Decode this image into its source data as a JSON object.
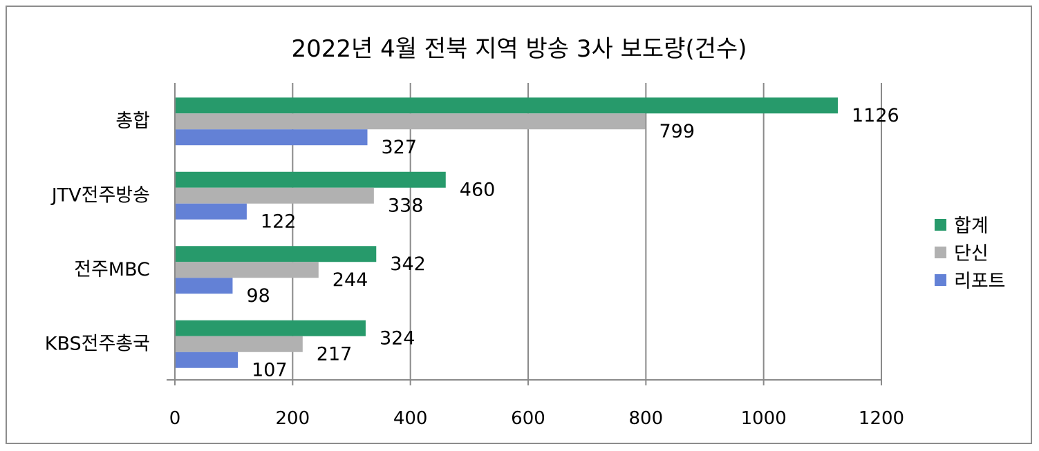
{
  "chart_data": {
    "type": "bar",
    "orientation": "horizontal",
    "title": "2022년 4월 전북 지역 방송 3사 보도량(건수)",
    "categories": [
      "총합",
      "JTV전주방송",
      "전주MBC",
      "KBS전주총국"
    ],
    "series": [
      {
        "name": "합계",
        "values": [
          1126,
          460,
          342,
          324
        ],
        "color": "#279a6b"
      },
      {
        "name": "단신",
        "values": [
          799,
          338,
          244,
          217
        ],
        "color": "#b1b1b1"
      },
      {
        "name": "리포트",
        "values": [
          327,
          122,
          98,
          107
        ],
        "color": "#6381d6"
      }
    ],
    "xlim": [
      0,
      1200
    ],
    "xticks": [
      0,
      200,
      400,
      600,
      800,
      1000,
      1200
    ],
    "xtick_labels": [
      "0",
      "200",
      "400",
      "600",
      "800",
      "1000",
      "1200"
    ],
    "grid": "vertical",
    "legend_position": "right",
    "data_labels": true
  }
}
